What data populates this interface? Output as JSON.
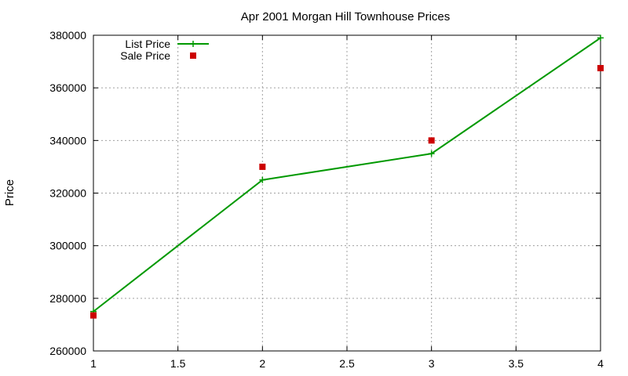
{
  "chart_data": {
    "type": "line",
    "title": "Apr 2001 Morgan Hill Townhouse Prices",
    "xlabel": "",
    "ylabel": "Price",
    "xlim": [
      1,
      4
    ],
    "ylim": [
      260000,
      380000
    ],
    "x_ticks": [
      1,
      1.5,
      2,
      2.5,
      3,
      3.5,
      4
    ],
    "y_ticks": [
      260000,
      280000,
      300000,
      320000,
      340000,
      360000,
      380000
    ],
    "grid": true,
    "legend_position": "top-left",
    "series": [
      {
        "name": "List Price",
        "type": "line",
        "marker": "plus",
        "color": "#009900",
        "x": [
          1,
          2,
          3,
          4
        ],
        "y": [
          275000,
          325000,
          335000,
          379000
        ]
      },
      {
        "name": "Sale Price",
        "type": "scatter",
        "marker": "square",
        "color": "#cc0000",
        "x": [
          1,
          2,
          3,
          4
        ],
        "y": [
          273500,
          330000,
          340000,
          367500
        ]
      }
    ]
  }
}
